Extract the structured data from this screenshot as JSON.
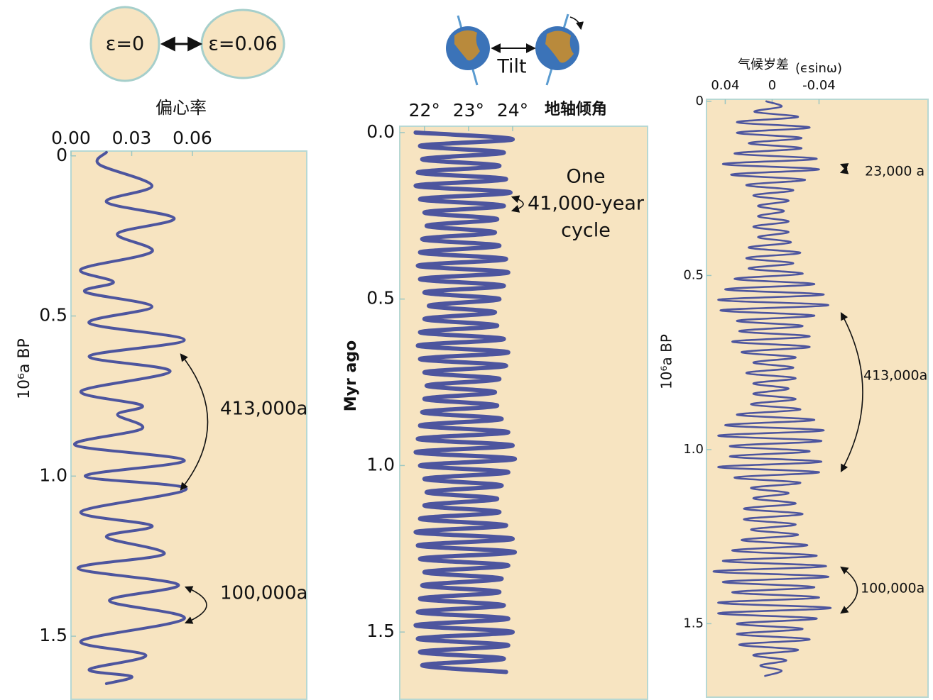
{
  "chart_data": [
    {
      "type": "line",
      "x_title": "偏心率",
      "y_title": "10⁶a BP",
      "illustration_labels": [
        "ε=0",
        "ε=0.06"
      ],
      "annotations": [
        "413,000a",
        "100,000a"
      ],
      "xlim": [
        0,
        0.1165
      ],
      "xticks": [
        {
          "value": 0,
          "label": "0.00"
        },
        0.03,
        0.06
      ],
      "ylim": [
        -0.015,
        1.697
      ],
      "yticks": [
        0,
        0.5,
        {
          "value": 1,
          "label": "1.0"
        },
        1.5
      ],
      "y_inverted": true,
      "x_reversed": false,
      "color": "#4d559e",
      "values": [
        0.0175,
        0.014,
        0.04,
        0.0175,
        0.051,
        0.023,
        0.04,
        0.005,
        0.021,
        0.007,
        0.04,
        0.009,
        0.056,
        0.009,
        0.049,
        0.005,
        0.035,
        0.023,
        0.035,
        0.002,
        0.056,
        0.007,
        0.057,
        0.005,
        0.04,
        0.0175,
        0.046,
        0.0035,
        0.053,
        0.019,
        0.056,
        0.005,
        0.037,
        0.009,
        0.03,
        0.0175
      ],
      "y": [
        -0.011,
        0.027,
        0.093,
        0.144,
        0.195,
        0.243,
        0.299,
        0.354,
        0.394,
        0.425,
        0.471,
        0.522,
        0.575,
        0.626,
        0.673,
        0.735,
        0.779,
        0.808,
        0.852,
        0.903,
        0.951,
        1.0,
        1.04,
        1.111,
        1.155,
        1.19,
        1.243,
        1.288,
        1.339,
        1.389,
        1.445,
        1.515,
        1.56,
        1.604,
        1.626,
        1.648
      ]
    },
    {
      "type": "line",
      "x_title": "地轴倾角",
      "y_title": "Myr ago",
      "illustration_labels": [
        "Tilt"
      ],
      "annotations": [
        "One",
        "41,000-year",
        "cycle"
      ],
      "xlim": [
        21.44,
        27.06
      ],
      "xticks": [
        {
          "value": 22,
          "label": "22°"
        },
        {
          "value": 23,
          "label": "23°"
        },
        {
          "value": 24,
          "label": "24°"
        }
      ],
      "ylim": [
        -0.019,
        1.702
      ],
      "yticks": [
        {
          "value": 0,
          "label": "0.0"
        },
        0.5,
        {
          "value": 1,
          "label": "1.0"
        },
        1.5
      ],
      "y_inverted": true,
      "x_reversed": false,
      "color": "#4d559e",
      "values": [
        21.8,
        24.0,
        21.9,
        23.8,
        21.95,
        23.7,
        21.85,
        23.85,
        21.8,
        23.95,
        21.9,
        23.8,
        22.0,
        23.65,
        22.05,
        23.6,
        21.95,
        23.7,
        21.9,
        23.85,
        21.85,
        23.9,
        21.9,
        23.8,
        22.0,
        23.7,
        22.1,
        23.6,
        22.0,
        23.65,
        21.9,
        23.8,
        21.85,
        23.9,
        21.9,
        23.85,
        22.0,
        23.7,
        22.05,
        23.6,
        22.0,
        23.65,
        21.95,
        23.75,
        21.9,
        23.9,
        21.85,
        24.0,
        21.8,
        24.05,
        21.9,
        23.9,
        22.0,
        23.75,
        22.05,
        23.65,
        22.0,
        23.7,
        21.9,
        23.85,
        21.8,
        24.0,
        21.85,
        24.05,
        21.9,
        23.9,
        22.0,
        23.75,
        21.95,
        23.7,
        21.9,
        23.8,
        21.85,
        23.9,
        21.8,
        24.0,
        21.85,
        23.9,
        21.9,
        23.8,
        21.95,
        23.85
      ],
      "y": [
        0,
        0.02,
        0.04,
        0.06,
        0.08,
        0.1,
        0.12,
        0.14,
        0.16,
        0.18,
        0.2,
        0.22,
        0.24,
        0.26,
        0.28,
        0.3,
        0.32,
        0.34,
        0.36,
        0.38,
        0.4,
        0.42,
        0.44,
        0.46,
        0.48,
        0.5,
        0.52,
        0.54,
        0.56,
        0.58,
        0.6,
        0.62,
        0.64,
        0.66,
        0.68,
        0.7,
        0.72,
        0.74,
        0.76,
        0.78,
        0.8,
        0.82,
        0.84,
        0.86,
        0.88,
        0.9,
        0.92,
        0.94,
        0.96,
        0.98,
        1.0,
        1.02,
        1.04,
        1.06,
        1.08,
        1.1,
        1.12,
        1.14,
        1.16,
        1.18,
        1.2,
        1.22,
        1.24,
        1.26,
        1.28,
        1.3,
        1.32,
        1.34,
        1.36,
        1.38,
        1.4,
        1.42,
        1.44,
        1.46,
        1.48,
        1.5,
        1.52,
        1.54,
        1.56,
        1.58,
        1.6,
        1.62
      ]
    },
    {
      "type": "line",
      "x_title": "气候岁差",
      "x_title_note": "(ϵsinω)",
      "y_title": "10⁶a BP",
      "annotations": [
        "23,000 a",
        "413,000a",
        "100,000a"
      ],
      "xlim": [
        -0.133,
        0.056
      ],
      "xticks": [
        0.04,
        0,
        -0.04
      ],
      "ylim": [
        -0.006,
        1.711
      ],
      "yticks": [
        0,
        0.5,
        {
          "value": 1,
          "label": "1.0"
        },
        1.5
      ],
      "y_inverted": true,
      "x_reversed": true,
      "color": "#4d559e",
      "values": [
        0.005,
        -0.008,
        0.015,
        -0.022,
        0.03,
        -0.032,
        0.03,
        -0.025,
        0.02,
        -0.025,
        0.032,
        -0.038,
        0.042,
        -0.04,
        0.035,
        -0.028,
        0.022,
        -0.018,
        0.016,
        -0.014,
        0.012,
        -0.01,
        0.012,
        -0.014,
        0.016,
        -0.014,
        0.012,
        -0.016,
        0.02,
        -0.024,
        0.022,
        -0.018,
        0.02,
        -0.026,
        0.032,
        -0.036,
        0.04,
        -0.044,
        0.046,
        -0.048,
        0.044,
        -0.036,
        0.03,
        -0.026,
        0.028,
        -0.032,
        0.034,
        -0.032,
        0.026,
        -0.02,
        0.016,
        -0.018,
        0.022,
        -0.02,
        0.016,
        -0.014,
        0.016,
        -0.02,
        0.018,
        -0.024,
        0.03,
        -0.036,
        0.04,
        -0.044,
        0.046,
        -0.042,
        0.036,
        -0.032,
        0.036,
        -0.042,
        0.046,
        -0.04,
        0.032,
        -0.024,
        0.018,
        -0.014,
        0.016,
        -0.02,
        0.024,
        -0.026,
        0.024,
        -0.02,
        0.018,
        -0.022,
        0.026,
        -0.03,
        0.034,
        -0.038,
        0.042,
        -0.046,
        0.05,
        -0.048,
        0.042,
        -0.036,
        0.034,
        -0.04,
        0.046,
        -0.05,
        0.046,
        -0.038,
        0.03,
        -0.026,
        0.03,
        -0.032,
        0.028,
        -0.022,
        0.016,
        -0.012,
        0.01,
        -0.008,
        0.006
      ],
      "y": [
        0,
        0.015,
        0.03,
        0.045,
        0.06,
        0.075,
        0.09,
        0.105,
        0.12,
        0.135,
        0.15,
        0.165,
        0.18,
        0.195,
        0.21,
        0.225,
        0.24,
        0.255,
        0.27,
        0.285,
        0.3,
        0.315,
        0.33,
        0.345,
        0.36,
        0.375,
        0.39,
        0.405,
        0.42,
        0.435,
        0.45,
        0.465,
        0.48,
        0.495,
        0.51,
        0.525,
        0.54,
        0.555,
        0.57,
        0.585,
        0.6,
        0.615,
        0.63,
        0.645,
        0.66,
        0.675,
        0.69,
        0.705,
        0.72,
        0.735,
        0.75,
        0.765,
        0.78,
        0.795,
        0.81,
        0.825,
        0.84,
        0.855,
        0.87,
        0.885,
        0.9,
        0.915,
        0.93,
        0.945,
        0.96,
        0.975,
        0.99,
        1.005,
        1.02,
        1.035,
        1.05,
        1.065,
        1.08,
        1.095,
        1.11,
        1.125,
        1.14,
        1.155,
        1.17,
        1.185,
        1.2,
        1.215,
        1.23,
        1.245,
        1.26,
        1.275,
        1.29,
        1.305,
        1.32,
        1.335,
        1.35,
        1.365,
        1.38,
        1.395,
        1.41,
        1.425,
        1.44,
        1.455,
        1.47,
        1.485,
        1.5,
        1.515,
        1.53,
        1.545,
        1.56,
        1.575,
        1.59,
        1.605,
        1.62,
        1.635,
        1.65
      ]
    }
  ]
}
